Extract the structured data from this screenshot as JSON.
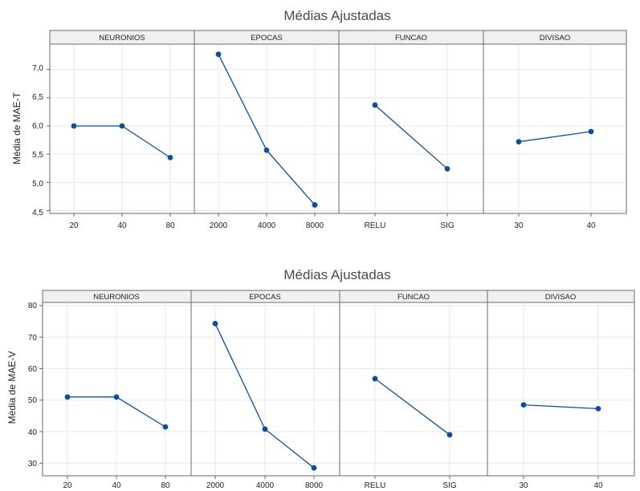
{
  "chart_data": [
    {
      "type": "line",
      "title": "Médias Ajustadas",
      "ylabel": "Média de MAE-T",
      "ylim": [
        4.45,
        7.45
      ],
      "yticks": [
        "4,5",
        "5,0",
        "5,5",
        "6,0",
        "6,5",
        "7,0"
      ],
      "ytick_values": [
        4.5,
        5.0,
        5.5,
        6.0,
        6.5,
        7.0
      ],
      "grid": true,
      "color": "#0b4f9c",
      "panels": [
        {
          "label": "NEURONIOS",
          "categories": [
            "20",
            "40",
            "80"
          ],
          "values": [
            6.0,
            6.0,
            5.44
          ]
        },
        {
          "label": "EPOCAS",
          "categories": [
            "2000",
            "4000",
            "8000"
          ],
          "values": [
            7.27,
            5.57,
            4.6
          ]
        },
        {
          "label": "FUNCAO",
          "categories": [
            "RELU",
            "SIG"
          ],
          "values": [
            6.37,
            5.24
          ]
        },
        {
          "label": "DIVISAO",
          "categories": [
            "30",
            "40"
          ],
          "values": [
            5.72,
            5.9
          ]
        }
      ]
    },
    {
      "type": "line",
      "title": "Médias Ajustadas",
      "ylabel": "Média de MAE-V",
      "ylim": [
        26,
        81
      ],
      "yticks": [
        "30",
        "40",
        "50",
        "60",
        "70",
        "80"
      ],
      "ytick_values": [
        30,
        40,
        50,
        60,
        70,
        80
      ],
      "grid": true,
      "color": "#0b4f9c",
      "panels": [
        {
          "label": "NEURONIOS",
          "categories": [
            "20",
            "40",
            "80"
          ],
          "values": [
            51.0,
            51.0,
            41.5
          ]
        },
        {
          "label": "EPOCAS",
          "categories": [
            "2000",
            "4000",
            "8000"
          ],
          "values": [
            74.3,
            40.8,
            28.5
          ]
        },
        {
          "label": "FUNCAO",
          "categories": [
            "RELU",
            "SIG"
          ],
          "values": [
            56.8,
            39.0
          ]
        },
        {
          "label": "DIVISAO",
          "categories": [
            "30",
            "40"
          ],
          "values": [
            48.5,
            47.3
          ]
        }
      ]
    }
  ]
}
